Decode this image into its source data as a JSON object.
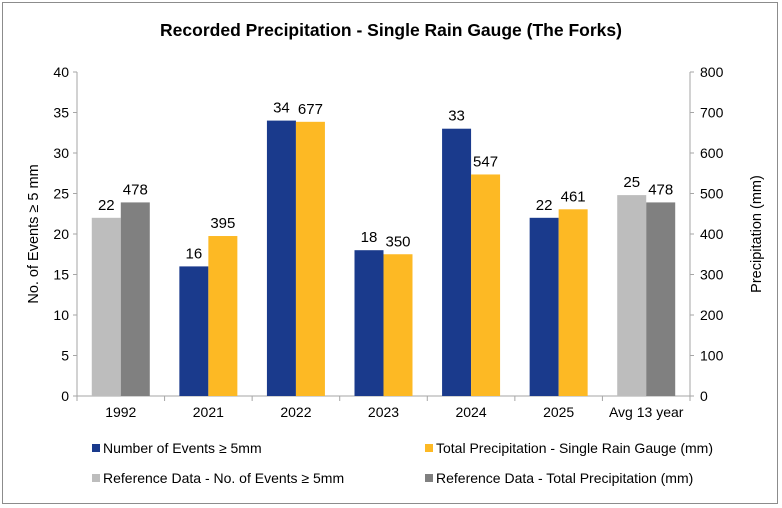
{
  "chart_data": {
    "type": "bar",
    "title": "Recorded Precipitation  - Single Rain Gauge (The Forks)",
    "categories": [
      "1992",
      "2021",
      "2022",
      "2023",
      "2024",
      "2025",
      "Avg 13 year"
    ],
    "ylabel_left": "No. of Events ≥ 5 mm",
    "ylabel_right": "Precipitation (mm)",
    "ylim_left": [
      0,
      40
    ],
    "ylim_right": [
      0,
      800
    ],
    "yticks_left": [
      "0",
      "5",
      "10",
      "15",
      "20",
      "25",
      "30",
      "35",
      "40"
    ],
    "yticks_right": [
      "0",
      "100",
      "200",
      "300",
      "400",
      "500",
      "600",
      "700",
      "800"
    ],
    "grid": false,
    "legend_position": "bottom",
    "series": [
      {
        "name": "Number of Events ≥ 5mm",
        "axis": "left",
        "color": "#1a3a8c",
        "values": [
          null,
          16,
          34,
          18,
          33,
          22,
          null
        ],
        "labels": [
          "",
          "16",
          "34",
          "18",
          "33",
          "22",
          ""
        ]
      },
      {
        "name": "Total Precipitation - Single Rain Gauge (mm)",
        "axis": "right",
        "color": "#fdb924",
        "values": [
          null,
          395,
          677,
          350,
          547,
          461,
          null
        ],
        "labels": [
          "",
          "395",
          "677",
          "350",
          "547",
          "461",
          ""
        ]
      },
      {
        "name": "Reference Data - No. of Events ≥ 5mm",
        "axis": "left",
        "color": "#bdbdbd",
        "values": [
          22,
          null,
          null,
          null,
          null,
          null,
          24.8
        ],
        "labels": [
          "22",
          "",
          "",
          "",
          "",
          "",
          "25"
        ]
      },
      {
        "name": "Reference Data - Total Precipitation (mm)",
        "axis": "right",
        "color": "#808080",
        "values": [
          478,
          null,
          null,
          null,
          null,
          null,
          478
        ],
        "labels": [
          "478",
          "",
          "",
          "",
          "",
          "",
          "478"
        ]
      }
    ]
  }
}
